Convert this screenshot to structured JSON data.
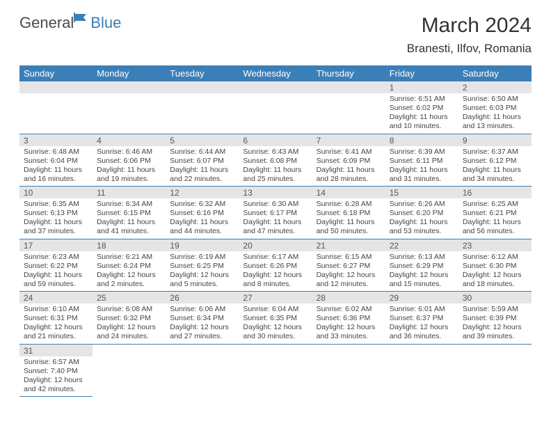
{
  "logo": {
    "text1": "General",
    "text2": "Blue"
  },
  "title": "March 2024",
  "location": "Branesti, Ilfov, Romania",
  "colors": {
    "header_bg": "#3b7fb8",
    "header_text": "#ffffff",
    "daynum_bg": "#e5e5e5",
    "border": "#3b7fb8",
    "logo_gray": "#4a4a4a",
    "logo_blue": "#3b7fb8"
  },
  "weekdays": [
    "Sunday",
    "Monday",
    "Tuesday",
    "Wednesday",
    "Thursday",
    "Friday",
    "Saturday"
  ],
  "weeks": [
    [
      null,
      null,
      null,
      null,
      null,
      {
        "n": "1",
        "sr": "Sunrise: 6:51 AM",
        "ss": "Sunset: 6:02 PM",
        "d1": "Daylight: 11 hours",
        "d2": "and 10 minutes."
      },
      {
        "n": "2",
        "sr": "Sunrise: 6:50 AM",
        "ss": "Sunset: 6:03 PM",
        "d1": "Daylight: 11 hours",
        "d2": "and 13 minutes."
      }
    ],
    [
      {
        "n": "3",
        "sr": "Sunrise: 6:48 AM",
        "ss": "Sunset: 6:04 PM",
        "d1": "Daylight: 11 hours",
        "d2": "and 16 minutes."
      },
      {
        "n": "4",
        "sr": "Sunrise: 6:46 AM",
        "ss": "Sunset: 6:06 PM",
        "d1": "Daylight: 11 hours",
        "d2": "and 19 minutes."
      },
      {
        "n": "5",
        "sr": "Sunrise: 6:44 AM",
        "ss": "Sunset: 6:07 PM",
        "d1": "Daylight: 11 hours",
        "d2": "and 22 minutes."
      },
      {
        "n": "6",
        "sr": "Sunrise: 6:43 AM",
        "ss": "Sunset: 6:08 PM",
        "d1": "Daylight: 11 hours",
        "d2": "and 25 minutes."
      },
      {
        "n": "7",
        "sr": "Sunrise: 6:41 AM",
        "ss": "Sunset: 6:09 PM",
        "d1": "Daylight: 11 hours",
        "d2": "and 28 minutes."
      },
      {
        "n": "8",
        "sr": "Sunrise: 6:39 AM",
        "ss": "Sunset: 6:11 PM",
        "d1": "Daylight: 11 hours",
        "d2": "and 31 minutes."
      },
      {
        "n": "9",
        "sr": "Sunrise: 6:37 AM",
        "ss": "Sunset: 6:12 PM",
        "d1": "Daylight: 11 hours",
        "d2": "and 34 minutes."
      }
    ],
    [
      {
        "n": "10",
        "sr": "Sunrise: 6:35 AM",
        "ss": "Sunset: 6:13 PM",
        "d1": "Daylight: 11 hours",
        "d2": "and 37 minutes."
      },
      {
        "n": "11",
        "sr": "Sunrise: 6:34 AM",
        "ss": "Sunset: 6:15 PM",
        "d1": "Daylight: 11 hours",
        "d2": "and 41 minutes."
      },
      {
        "n": "12",
        "sr": "Sunrise: 6:32 AM",
        "ss": "Sunset: 6:16 PM",
        "d1": "Daylight: 11 hours",
        "d2": "and 44 minutes."
      },
      {
        "n": "13",
        "sr": "Sunrise: 6:30 AM",
        "ss": "Sunset: 6:17 PM",
        "d1": "Daylight: 11 hours",
        "d2": "and 47 minutes."
      },
      {
        "n": "14",
        "sr": "Sunrise: 6:28 AM",
        "ss": "Sunset: 6:18 PM",
        "d1": "Daylight: 11 hours",
        "d2": "and 50 minutes."
      },
      {
        "n": "15",
        "sr": "Sunrise: 6:26 AM",
        "ss": "Sunset: 6:20 PM",
        "d1": "Daylight: 11 hours",
        "d2": "and 53 minutes."
      },
      {
        "n": "16",
        "sr": "Sunrise: 6:25 AM",
        "ss": "Sunset: 6:21 PM",
        "d1": "Daylight: 11 hours",
        "d2": "and 56 minutes."
      }
    ],
    [
      {
        "n": "17",
        "sr": "Sunrise: 6:23 AM",
        "ss": "Sunset: 6:22 PM",
        "d1": "Daylight: 11 hours",
        "d2": "and 59 minutes."
      },
      {
        "n": "18",
        "sr": "Sunrise: 6:21 AM",
        "ss": "Sunset: 6:24 PM",
        "d1": "Daylight: 12 hours",
        "d2": "and 2 minutes."
      },
      {
        "n": "19",
        "sr": "Sunrise: 6:19 AM",
        "ss": "Sunset: 6:25 PM",
        "d1": "Daylight: 12 hours",
        "d2": "and 5 minutes."
      },
      {
        "n": "20",
        "sr": "Sunrise: 6:17 AM",
        "ss": "Sunset: 6:26 PM",
        "d1": "Daylight: 12 hours",
        "d2": "and 8 minutes."
      },
      {
        "n": "21",
        "sr": "Sunrise: 6:15 AM",
        "ss": "Sunset: 6:27 PM",
        "d1": "Daylight: 12 hours",
        "d2": "and 12 minutes."
      },
      {
        "n": "22",
        "sr": "Sunrise: 6:13 AM",
        "ss": "Sunset: 6:29 PM",
        "d1": "Daylight: 12 hours",
        "d2": "and 15 minutes."
      },
      {
        "n": "23",
        "sr": "Sunrise: 6:12 AM",
        "ss": "Sunset: 6:30 PM",
        "d1": "Daylight: 12 hours",
        "d2": "and 18 minutes."
      }
    ],
    [
      {
        "n": "24",
        "sr": "Sunrise: 6:10 AM",
        "ss": "Sunset: 6:31 PM",
        "d1": "Daylight: 12 hours",
        "d2": "and 21 minutes."
      },
      {
        "n": "25",
        "sr": "Sunrise: 6:08 AM",
        "ss": "Sunset: 6:32 PM",
        "d1": "Daylight: 12 hours",
        "d2": "and 24 minutes."
      },
      {
        "n": "26",
        "sr": "Sunrise: 6:06 AM",
        "ss": "Sunset: 6:34 PM",
        "d1": "Daylight: 12 hours",
        "d2": "and 27 minutes."
      },
      {
        "n": "27",
        "sr": "Sunrise: 6:04 AM",
        "ss": "Sunset: 6:35 PM",
        "d1": "Daylight: 12 hours",
        "d2": "and 30 minutes."
      },
      {
        "n": "28",
        "sr": "Sunrise: 6:02 AM",
        "ss": "Sunset: 6:36 PM",
        "d1": "Daylight: 12 hours",
        "d2": "and 33 minutes."
      },
      {
        "n": "29",
        "sr": "Sunrise: 6:01 AM",
        "ss": "Sunset: 6:37 PM",
        "d1": "Daylight: 12 hours",
        "d2": "and 36 minutes."
      },
      {
        "n": "30",
        "sr": "Sunrise: 5:59 AM",
        "ss": "Sunset: 6:39 PM",
        "d1": "Daylight: 12 hours",
        "d2": "and 39 minutes."
      }
    ],
    [
      {
        "n": "31",
        "sr": "Sunrise: 6:57 AM",
        "ss": "Sunset: 7:40 PM",
        "d1": "Daylight: 12 hours",
        "d2": "and 42 minutes."
      },
      null,
      null,
      null,
      null,
      null,
      null
    ]
  ]
}
